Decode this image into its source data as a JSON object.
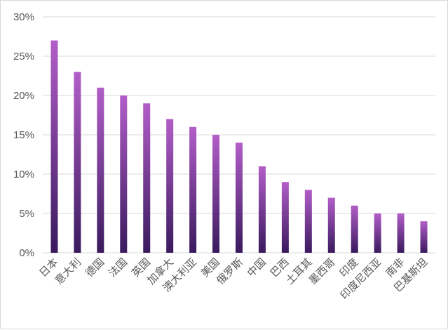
{
  "chart_data": {
    "type": "bar",
    "categories": [
      "日本",
      "意大利",
      "德国",
      "法国",
      "英国",
      "加拿大",
      "澳大利亚",
      "美国",
      "俄罗斯",
      "中国",
      "巴西",
      "土耳其",
      "墨西哥",
      "印度",
      "印度尼西亚",
      "南非",
      "巴基斯坦"
    ],
    "values": [
      27,
      23,
      21,
      20,
      19,
      17,
      16,
      15,
      14,
      11,
      9,
      8,
      7,
      6,
      5,
      5,
      4
    ],
    "y_ticks": [
      "0%",
      "5%",
      "10%",
      "15%",
      "20%",
      "25%",
      "30%"
    ],
    "ylim": [
      0,
      30
    ],
    "grid": true,
    "legend": "none",
    "colors": {
      "bar_top": "#b25ec8",
      "bar_bottom": "#3a1a5e",
      "grid": "#d9d9d9",
      "text": "#595959"
    }
  }
}
